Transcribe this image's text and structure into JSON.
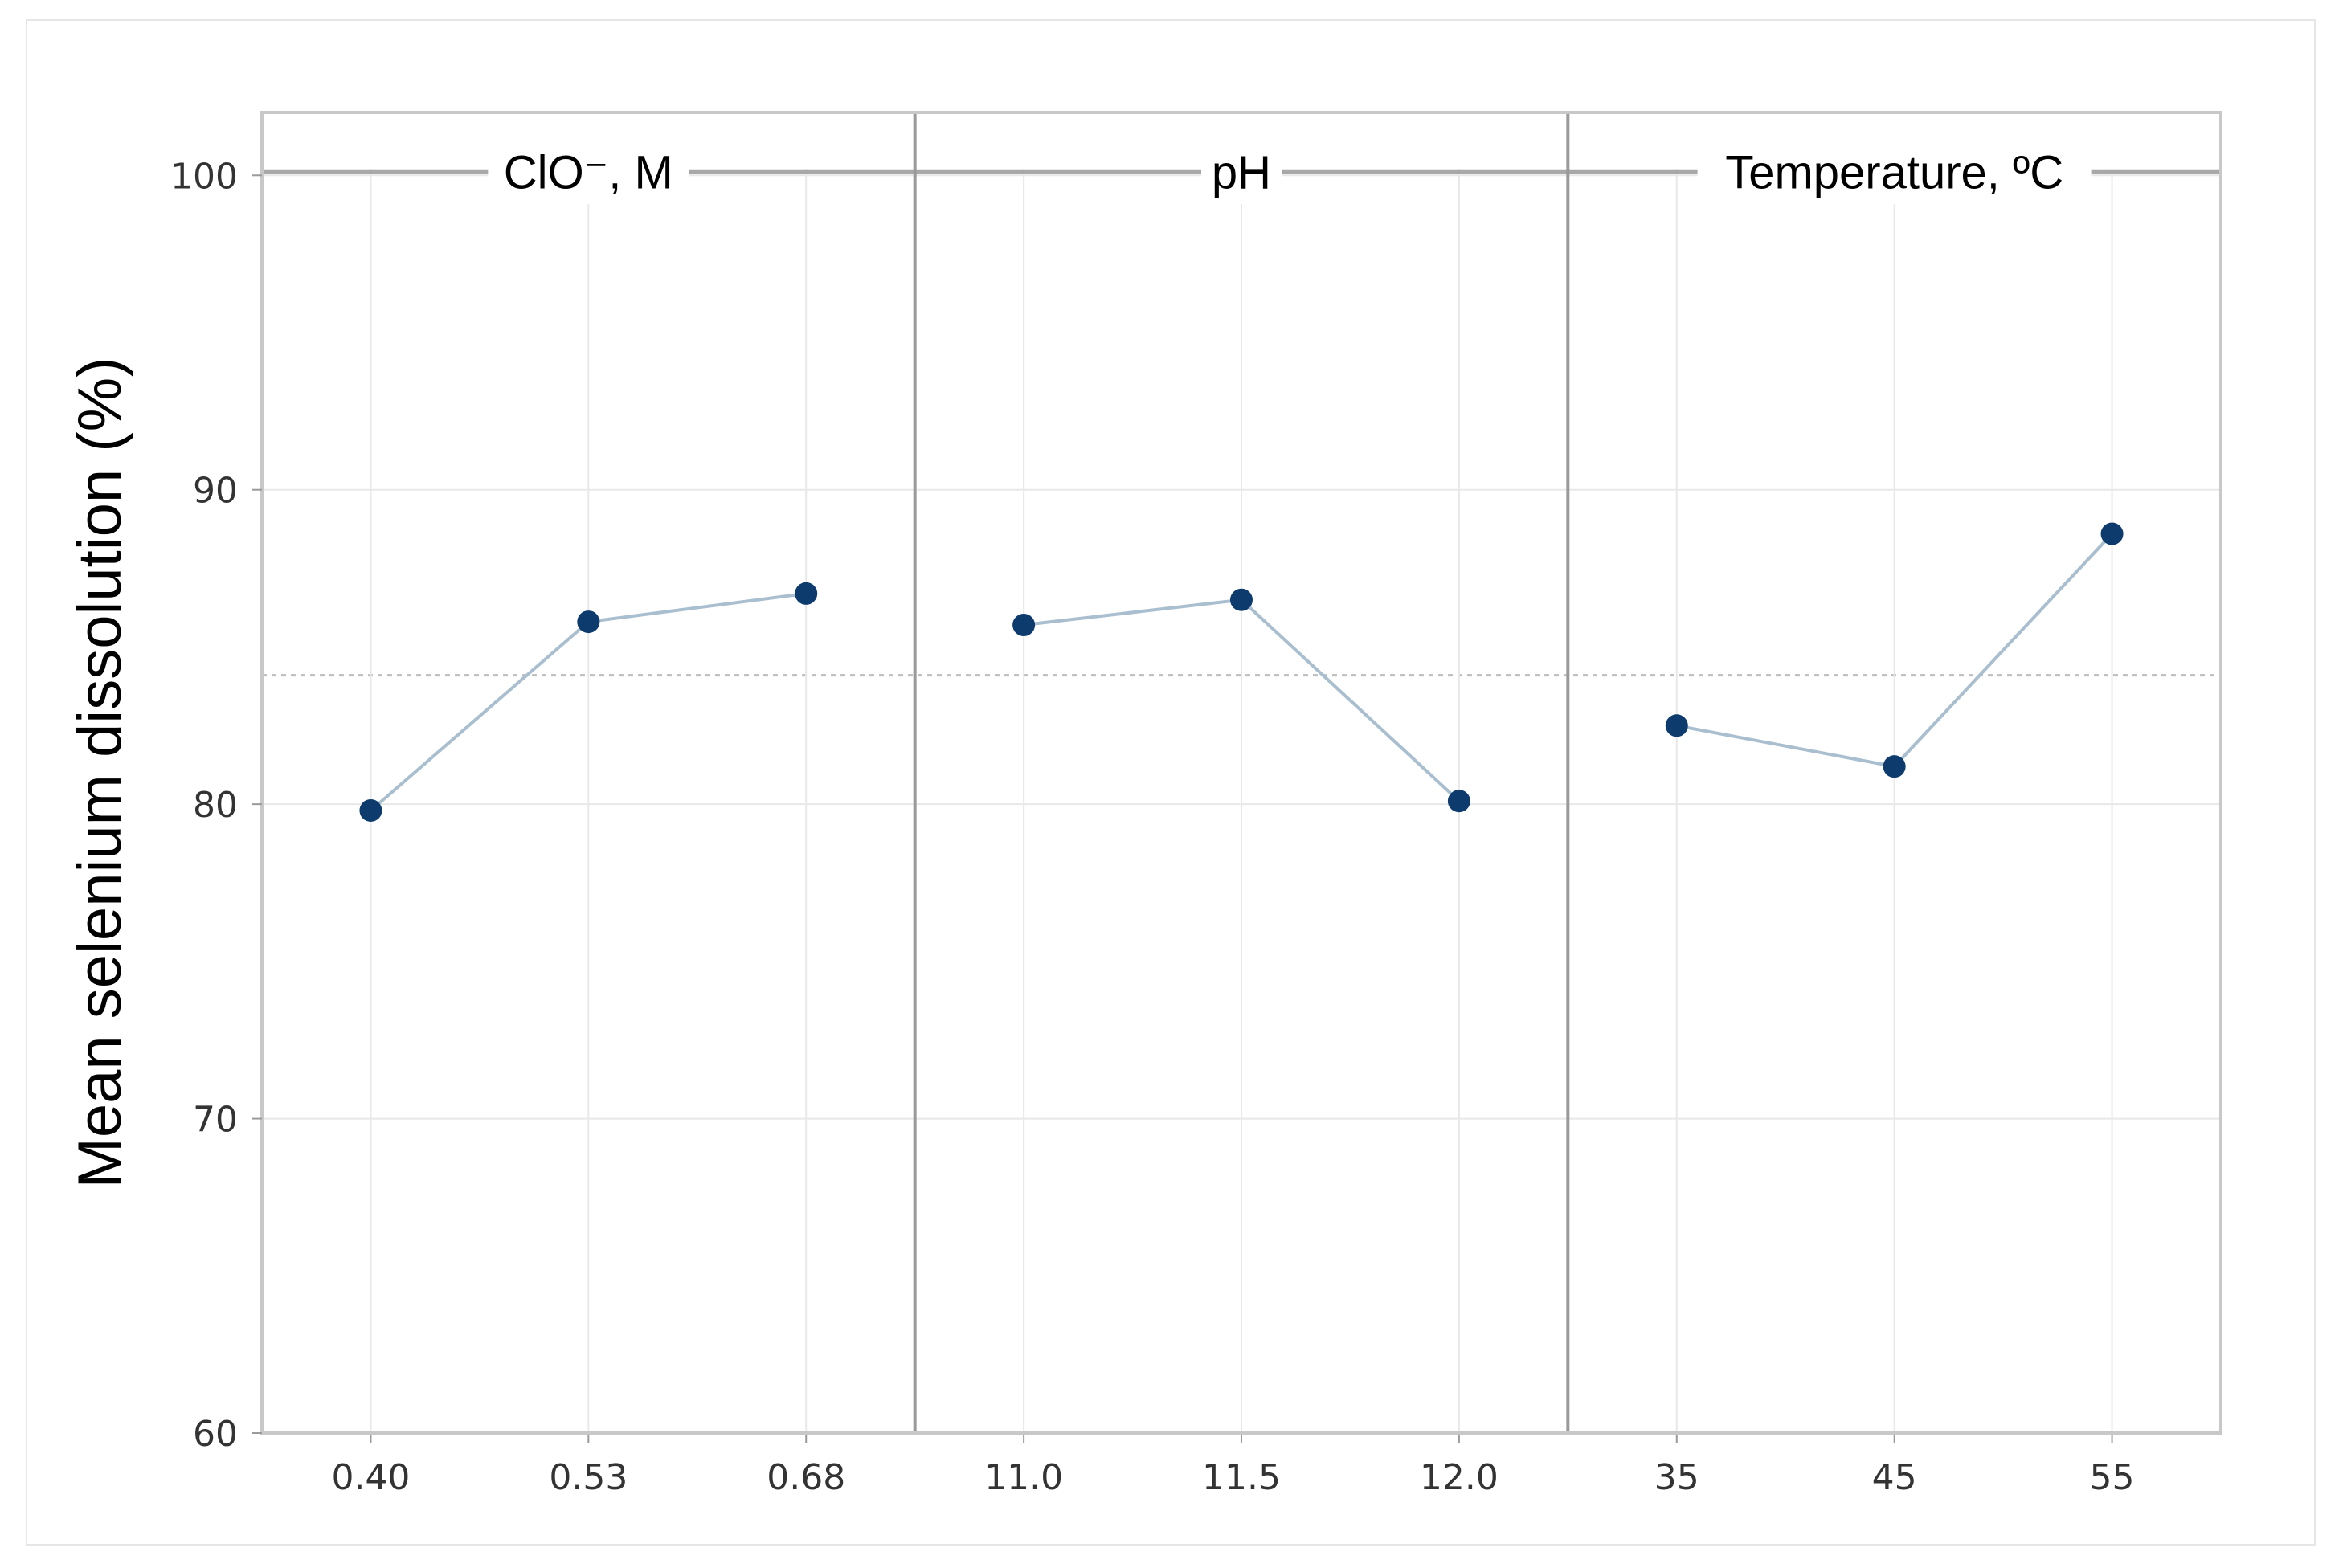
{
  "chart_data": {
    "type": "line",
    "ylabel": "Mean selenium dissolution (%)",
    "ylim": [
      60,
      102
    ],
    "yticks": [
      60,
      70,
      80,
      90,
      100
    ],
    "overall_mean": 84.1,
    "grid": true,
    "panels": [
      {
        "title": "ClO⁻, M",
        "categories": [
          "0.40",
          "0.53",
          "0.68"
        ],
        "values": [
          79.8,
          85.8,
          86.7
        ]
      },
      {
        "title": "pH",
        "categories": [
          "11.0",
          "11.5",
          "12.0"
        ],
        "values": [
          85.7,
          86.5,
          80.1
        ]
      },
      {
        "title": "Temperature, ºC",
        "categories": [
          "35",
          "45",
          "55"
        ],
        "values": [
          82.5,
          81.2,
          88.6
        ]
      }
    ],
    "colors": {
      "point": "#0d3b6e",
      "line": "#a9bfcf",
      "grid": "#e8e8e8",
      "divider": "#9a9a9a",
      "mean_line": "#bdbdbd"
    }
  }
}
